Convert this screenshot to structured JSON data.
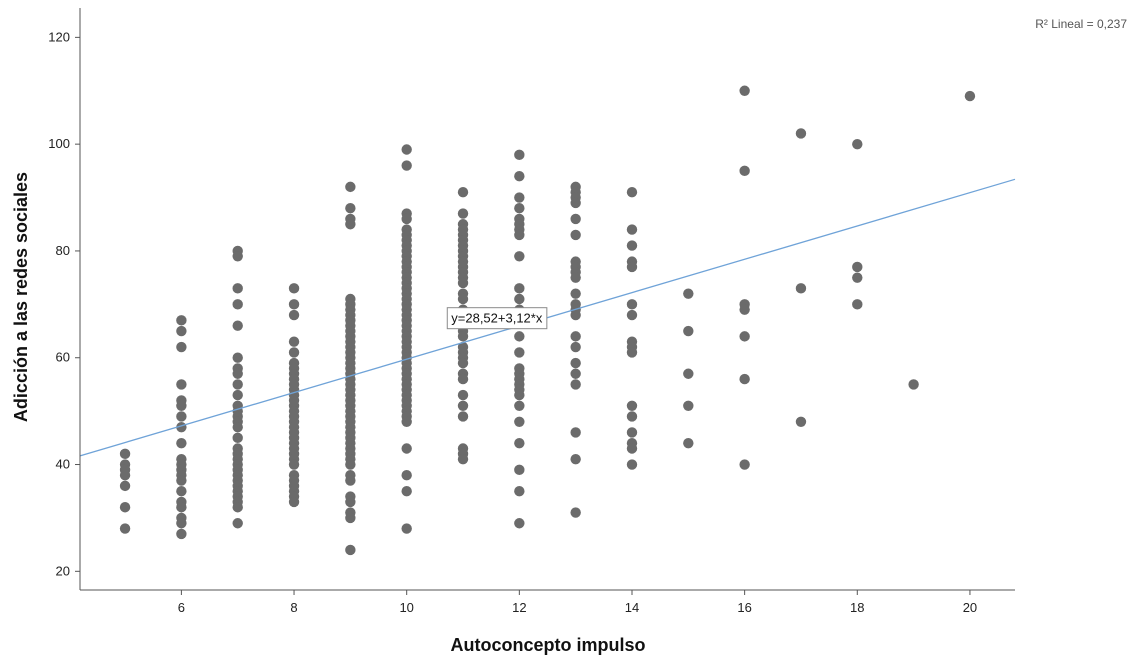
{
  "chart_data": {
    "type": "scatter",
    "xlabel": "Autoconcepto impulso",
    "ylabel": "Adicción a las redes sociales",
    "xlim": [
      4.2,
      20.8
    ],
    "ylim": [
      16.5,
      125.5
    ],
    "xticks": [
      6,
      8,
      10,
      12,
      14,
      16,
      18,
      20
    ],
    "yticks": [
      20,
      40,
      60,
      80,
      100,
      120
    ],
    "grid": false,
    "marker_color": "#6b6b6b",
    "fit_line": {
      "intercept": 28.52,
      "slope": 3.12,
      "color": "#6fa3d8",
      "equation_label": "y=28,52+3,12*x",
      "label_x": 11.6,
      "label_y": 67.5,
      "r2_label": "R² Lineal = 0,237"
    },
    "points": [
      [
        5,
        42
      ],
      [
        5,
        40
      ],
      [
        5,
        39
      ],
      [
        5,
        38
      ],
      [
        5,
        36
      ],
      [
        5,
        32
      ],
      [
        5,
        28
      ],
      [
        6,
        67
      ],
      [
        6,
        65
      ],
      [
        6,
        62
      ],
      [
        6,
        55
      ],
      [
        6,
        52
      ],
      [
        6,
        51
      ],
      [
        6,
        49
      ],
      [
        6,
        47
      ],
      [
        6,
        44
      ],
      [
        6,
        41
      ],
      [
        6,
        40
      ],
      [
        6,
        39
      ],
      [
        6,
        38
      ],
      [
        6,
        37
      ],
      [
        6,
        35
      ],
      [
        6,
        33
      ],
      [
        6,
        32
      ],
      [
        6,
        30
      ],
      [
        6,
        29
      ],
      [
        6,
        27
      ],
      [
        7,
        80
      ],
      [
        7,
        79
      ],
      [
        7,
        73
      ],
      [
        7,
        70
      ],
      [
        7,
        66
      ],
      [
        7,
        60
      ],
      [
        7,
        58
      ],
      [
        7,
        57
      ],
      [
        7,
        55
      ],
      [
        7,
        53
      ],
      [
        7,
        51
      ],
      [
        7,
        50
      ],
      [
        7,
        49
      ],
      [
        7,
        48
      ],
      [
        7,
        47
      ],
      [
        7,
        45
      ],
      [
        7,
        43
      ],
      [
        7,
        42
      ],
      [
        7,
        41
      ],
      [
        7,
        40
      ],
      [
        7,
        39
      ],
      [
        7,
        38
      ],
      [
        7,
        37
      ],
      [
        7,
        36
      ],
      [
        7,
        35
      ],
      [
        7,
        34
      ],
      [
        7,
        33
      ],
      [
        7,
        32
      ],
      [
        7,
        29
      ],
      [
        8,
        73
      ],
      [
        8,
        70
      ],
      [
        8,
        68
      ],
      [
        8,
        63
      ],
      [
        8,
        61
      ],
      [
        8,
        59
      ],
      [
        8,
        58
      ],
      [
        8,
        57
      ],
      [
        8,
        56
      ],
      [
        8,
        55
      ],
      [
        8,
        54
      ],
      [
        8,
        53
      ],
      [
        8,
        52
      ],
      [
        8,
        51
      ],
      [
        8,
        50
      ],
      [
        8,
        49
      ],
      [
        8,
        48
      ],
      [
        8,
        47
      ],
      [
        8,
        46
      ],
      [
        8,
        45
      ],
      [
        8,
        44
      ],
      [
        8,
        43
      ],
      [
        8,
        42
      ],
      [
        8,
        41
      ],
      [
        8,
        40
      ],
      [
        8,
        38
      ],
      [
        8,
        37
      ],
      [
        8,
        36
      ],
      [
        8,
        35
      ],
      [
        8,
        34
      ],
      [
        8,
        33
      ],
      [
        9,
        92
      ],
      [
        9,
        88
      ],
      [
        9,
        86
      ],
      [
        9,
        85
      ],
      [
        9,
        71
      ],
      [
        9,
        70
      ],
      [
        9,
        69
      ],
      [
        9,
        68
      ],
      [
        9,
        67
      ],
      [
        9,
        66
      ],
      [
        9,
        65
      ],
      [
        9,
        64
      ],
      [
        9,
        63
      ],
      [
        9,
        62
      ],
      [
        9,
        61
      ],
      [
        9,
        60
      ],
      [
        9,
        59
      ],
      [
        9,
        58
      ],
      [
        9,
        57
      ],
      [
        9,
        56
      ],
      [
        9,
        55
      ],
      [
        9,
        54
      ],
      [
        9,
        53
      ],
      [
        9,
        52
      ],
      [
        9,
        51
      ],
      [
        9,
        50
      ],
      [
        9,
        49
      ],
      [
        9,
        48
      ],
      [
        9,
        47
      ],
      [
        9,
        46
      ],
      [
        9,
        45
      ],
      [
        9,
        44
      ],
      [
        9,
        43
      ],
      [
        9,
        42
      ],
      [
        9,
        41
      ],
      [
        9,
        40
      ],
      [
        9,
        38
      ],
      [
        9,
        37
      ],
      [
        9,
        34
      ],
      [
        9,
        33
      ],
      [
        9,
        31
      ],
      [
        9,
        30
      ],
      [
        9,
        24
      ],
      [
        10,
        99
      ],
      [
        10,
        96
      ],
      [
        10,
        87
      ],
      [
        10,
        86
      ],
      [
        10,
        84
      ],
      [
        10,
        83
      ],
      [
        10,
        82
      ],
      [
        10,
        81
      ],
      [
        10,
        80
      ],
      [
        10,
        79
      ],
      [
        10,
        78
      ],
      [
        10,
        77
      ],
      [
        10,
        76
      ],
      [
        10,
        75
      ],
      [
        10,
        74
      ],
      [
        10,
        73
      ],
      [
        10,
        72
      ],
      [
        10,
        71
      ],
      [
        10,
        70
      ],
      [
        10,
        69
      ],
      [
        10,
        68
      ],
      [
        10,
        67
      ],
      [
        10,
        66
      ],
      [
        10,
        65
      ],
      [
        10,
        64
      ],
      [
        10,
        63
      ],
      [
        10,
        62
      ],
      [
        10,
        61
      ],
      [
        10,
        60
      ],
      [
        10,
        59
      ],
      [
        10,
        58
      ],
      [
        10,
        57
      ],
      [
        10,
        56
      ],
      [
        10,
        55
      ],
      [
        10,
        54
      ],
      [
        10,
        53
      ],
      [
        10,
        52
      ],
      [
        10,
        51
      ],
      [
        10,
        50
      ],
      [
        10,
        49
      ],
      [
        10,
        48
      ],
      [
        10,
        43
      ],
      [
        10,
        38
      ],
      [
        10,
        35
      ],
      [
        10,
        28
      ],
      [
        11,
        91
      ],
      [
        11,
        87
      ],
      [
        11,
        85
      ],
      [
        11,
        84
      ],
      [
        11,
        83
      ],
      [
        11,
        82
      ],
      [
        11,
        81
      ],
      [
        11,
        80
      ],
      [
        11,
        79
      ],
      [
        11,
        78
      ],
      [
        11,
        77
      ],
      [
        11,
        76
      ],
      [
        11,
        75
      ],
      [
        11,
        74
      ],
      [
        11,
        72
      ],
      [
        11,
        71
      ],
      [
        11,
        69
      ],
      [
        11,
        67
      ],
      [
        11,
        65
      ],
      [
        11,
        64
      ],
      [
        11,
        62
      ],
      [
        11,
        61
      ],
      [
        11,
        60
      ],
      [
        11,
        59
      ],
      [
        11,
        57
      ],
      [
        11,
        56
      ],
      [
        11,
        53
      ],
      [
        11,
        51
      ],
      [
        11,
        49
      ],
      [
        11,
        43
      ],
      [
        11,
        42
      ],
      [
        11,
        41
      ],
      [
        12,
        98
      ],
      [
        12,
        94
      ],
      [
        12,
        90
      ],
      [
        12,
        88
      ],
      [
        12,
        86
      ],
      [
        12,
        85
      ],
      [
        12,
        84
      ],
      [
        12,
        83
      ],
      [
        12,
        79
      ],
      [
        12,
        73
      ],
      [
        12,
        71
      ],
      [
        12,
        69
      ],
      [
        12,
        68
      ],
      [
        12,
        64
      ],
      [
        12,
        61
      ],
      [
        12,
        58
      ],
      [
        12,
        57
      ],
      [
        12,
        56
      ],
      [
        12,
        55
      ],
      [
        12,
        54
      ],
      [
        12,
        53
      ],
      [
        12,
        51
      ],
      [
        12,
        48
      ],
      [
        12,
        44
      ],
      [
        12,
        39
      ],
      [
        12,
        35
      ],
      [
        12,
        29
      ],
      [
        13,
        92
      ],
      [
        13,
        91
      ],
      [
        13,
        90
      ],
      [
        13,
        89
      ],
      [
        13,
        86
      ],
      [
        13,
        83
      ],
      [
        13,
        78
      ],
      [
        13,
        77
      ],
      [
        13,
        76
      ],
      [
        13,
        75
      ],
      [
        13,
        72
      ],
      [
        13,
        70
      ],
      [
        13,
        69
      ],
      [
        13,
        68
      ],
      [
        13,
        64
      ],
      [
        13,
        62
      ],
      [
        13,
        59
      ],
      [
        13,
        57
      ],
      [
        13,
        55
      ],
      [
        13,
        46
      ],
      [
        13,
        41
      ],
      [
        13,
        31
      ],
      [
        14,
        91
      ],
      [
        14,
        84
      ],
      [
        14,
        81
      ],
      [
        14,
        78
      ],
      [
        14,
        77
      ],
      [
        14,
        70
      ],
      [
        14,
        68
      ],
      [
        14,
        63
      ],
      [
        14,
        62
      ],
      [
        14,
        61
      ],
      [
        14,
        51
      ],
      [
        14,
        49
      ],
      [
        14,
        46
      ],
      [
        14,
        44
      ],
      [
        14,
        43
      ],
      [
        14,
        40
      ],
      [
        15,
        72
      ],
      [
        15,
        65
      ],
      [
        15,
        57
      ],
      [
        15,
        51
      ],
      [
        15,
        44
      ],
      [
        16,
        110
      ],
      [
        16,
        95
      ],
      [
        16,
        70
      ],
      [
        16,
        69
      ],
      [
        16,
        64
      ],
      [
        16,
        56
      ],
      [
        16,
        40
      ],
      [
        17,
        102
      ],
      [
        17,
        73
      ],
      [
        17,
        48
      ],
      [
        18,
        100
      ],
      [
        18,
        77
      ],
      [
        18,
        75
      ],
      [
        18,
        70
      ],
      [
        19,
        55
      ],
      [
        20,
        109
      ]
    ]
  }
}
